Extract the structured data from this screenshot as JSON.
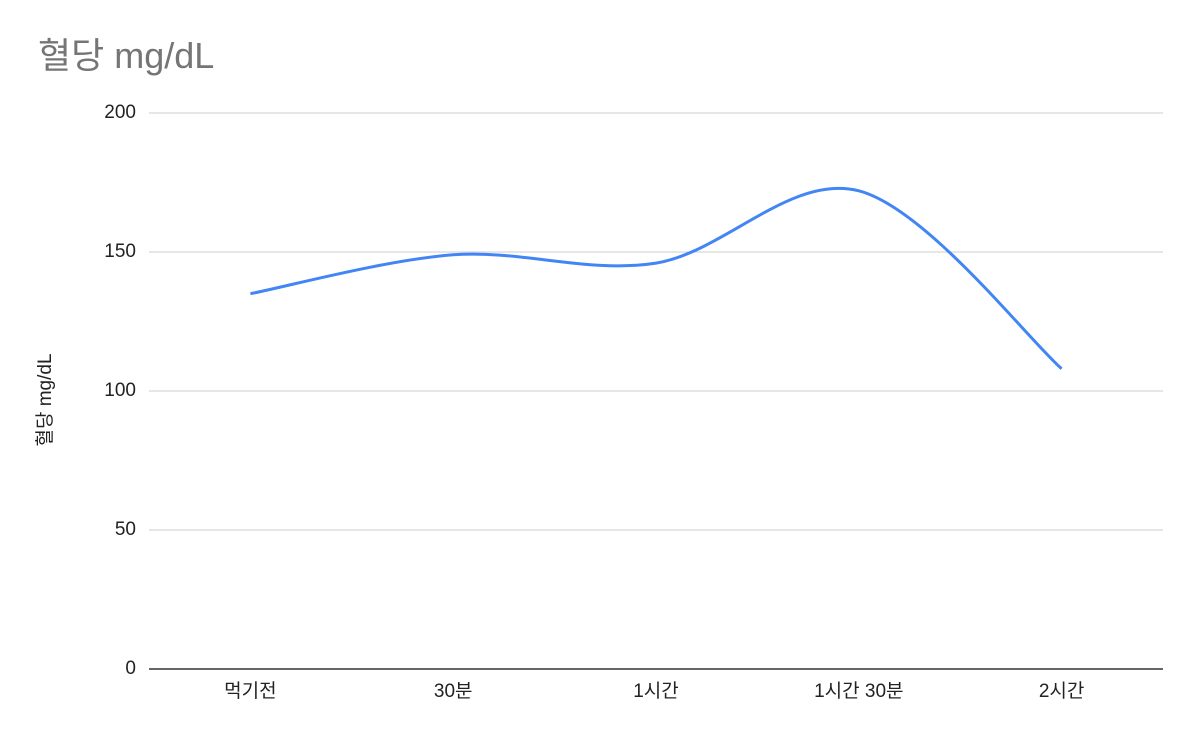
{
  "chart_data": {
    "type": "line",
    "title": "혈당 mg/dL",
    "y_label": "혈당 mg/dL",
    "categories": [
      "먹기전",
      "30분",
      "1시간",
      "1시간 30분",
      "2시간"
    ],
    "series": [
      {
        "name": "혈당 mg/dL",
        "color": "#4285f4",
        "values": [
          135,
          149,
          146,
          172,
          108
        ]
      }
    ],
    "ylim": [
      0,
      200
    ],
    "yticks": [
      0,
      50,
      100,
      150,
      200
    ],
    "grid": true,
    "smooth": true
  }
}
